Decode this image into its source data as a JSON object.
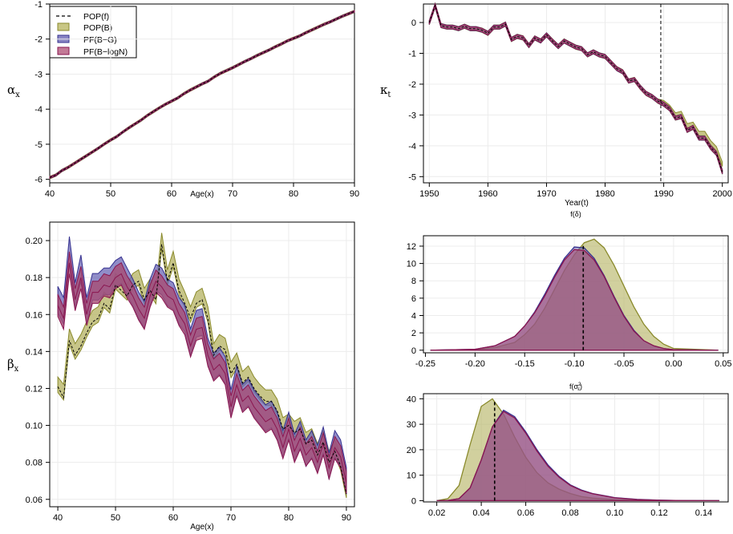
{
  "figure": {
    "legend": {
      "entries": [
        {
          "label": "POP(f)",
          "style": "dashed-line",
          "color": "#000000"
        },
        {
          "label": "POP(B)",
          "style": "fill",
          "fill": "#c8c684",
          "stroke": "#8a8a2c"
        },
        {
          "label": "PF(B−G)",
          "style": "fill",
          "fill": "#8a86c4",
          "stroke": "#35318f"
        },
        {
          "label": "PF(B−logN)",
          "style": "fill",
          "fill": "#c27a96",
          "stroke": "#8a1650"
        }
      ]
    },
    "colors": {
      "pop_f": "#000000",
      "pop_b": "#b9b76a",
      "pop_b_line": "#8a8a2c",
      "pf_bg": "#6b67b5",
      "pf_bg_line": "#35318f",
      "pf_blogn": "#a64d74",
      "pf_blogn_line": "#8a1650"
    }
  },
  "chart_data": [
    {
      "id": "alpha",
      "type": "line",
      "ylabel_main": "α",
      "ylabel_sub": "x",
      "xlabel": "Age(x)",
      "xlim": [
        40,
        90
      ],
      "ylim": [
        -6.1,
        -1
      ],
      "xticks": [
        40,
        50,
        60,
        70,
        80,
        90
      ],
      "yticks": [
        -6,
        -5,
        -4,
        -3,
        -2,
        -1
      ],
      "grid": true,
      "legend_position": "top-left",
      "x": [
        40,
        41,
        42,
        43,
        44,
        45,
        46,
        47,
        48,
        49,
        50,
        51,
        52,
        53,
        54,
        55,
        56,
        57,
        58,
        59,
        60,
        61,
        62,
        63,
        64,
        65,
        66,
        67,
        68,
        69,
        70,
        71,
        72,
        73,
        74,
        75,
        76,
        77,
        78,
        79,
        80,
        81,
        82,
        83,
        84,
        85,
        86,
        87,
        88,
        89,
        90
      ],
      "values": [
        -5.95,
        -5.88,
        -5.75,
        -5.66,
        -5.55,
        -5.44,
        -5.33,
        -5.22,
        -5.11,
        -4.99,
        -4.88,
        -4.78,
        -4.65,
        -4.53,
        -4.42,
        -4.31,
        -4.18,
        -4.07,
        -3.96,
        -3.86,
        -3.77,
        -3.68,
        -3.56,
        -3.46,
        -3.37,
        -3.28,
        -3.2,
        -3.08,
        -2.98,
        -2.9,
        -2.82,
        -2.73,
        -2.64,
        -2.56,
        -2.47,
        -2.39,
        -2.31,
        -2.22,
        -2.14,
        -2.05,
        -1.98,
        -1.91,
        -1.82,
        -1.74,
        -1.66,
        -1.58,
        -1.51,
        -1.43,
        -1.35,
        -1.28,
        -1.21
      ],
      "band_width": 0.035
    },
    {
      "id": "kappa",
      "type": "line",
      "ylabel_main": "κ",
      "ylabel_sub": "t",
      "xlabel": "Year(t)",
      "xlim": [
        1949,
        2001
      ],
      "ylim": [
        -5.2,
        0.6
      ],
      "xticks": [
        1950,
        1960,
        1970,
        1980,
        1990,
        2000
      ],
      "yticks": [
        0,
        -1,
        -2,
        -3,
        -4,
        -5
      ],
      "grid": true,
      "vline": 1989.5,
      "x": [
        1950,
        1951,
        1952,
        1953,
        1954,
        1955,
        1956,
        1957,
        1958,
        1959,
        1960,
        1961,
        1962,
        1963,
        1964,
        1965,
        1966,
        1967,
        1968,
        1969,
        1970,
        1971,
        1972,
        1973,
        1974,
        1975,
        1976,
        1977,
        1978,
        1979,
        1980,
        1981,
        1982,
        1983,
        1984,
        1985,
        1986,
        1987,
        1988,
        1989,
        1990,
        1991,
        1992,
        1993,
        1994,
        1995,
        1996,
        1997,
        1998,
        1999,
        2000
      ],
      "values": [
        0.0,
        0.55,
        -0.1,
        -0.15,
        -0.15,
        -0.2,
        -0.12,
        -0.2,
        -0.2,
        -0.25,
        -0.35,
        -0.15,
        -0.15,
        -0.05,
        -0.55,
        -0.45,
        -0.5,
        -0.75,
        -0.5,
        -0.6,
        -0.4,
        -0.6,
        -0.78,
        -0.6,
        -0.7,
        -0.8,
        -0.85,
        -1.05,
        -0.95,
        -1.05,
        -1.1,
        -1.3,
        -1.5,
        -1.6,
        -1.9,
        -1.85,
        -2.1,
        -2.3,
        -2.4,
        -2.55,
        -2.65,
        -2.8,
        -3.1,
        -3.05,
        -3.5,
        -3.4,
        -3.75,
        -3.75,
        -4.05,
        -4.25,
        -4.85
      ],
      "pop_b_forecast": [
        -2.55,
        -2.6,
        -2.75,
        -3.0,
        -2.95,
        -3.35,
        -3.3,
        -3.6,
        -3.6,
        -3.9,
        -4.1,
        -4.6
      ],
      "band_width": 0.07
    },
    {
      "id": "beta",
      "type": "line",
      "ylabel_main": "β",
      "ylabel_sub": "x",
      "xlabel": "Age(x)",
      "xlim": [
        38.6,
        91.4
      ],
      "ylim": [
        0.056,
        0.21
      ],
      "xticks": [
        40,
        50,
        60,
        70,
        80,
        90
      ],
      "yticks": [
        0.06,
        0.08,
        0.1,
        0.12,
        0.14,
        0.16,
        0.18,
        0.2
      ],
      "grid": true,
      "x": [
        40,
        41,
        42,
        43,
        44,
        45,
        46,
        47,
        48,
        49,
        50,
        51,
        52,
        53,
        54,
        55,
        56,
        57,
        58,
        59,
        60,
        61,
        62,
        63,
        64,
        65,
        66,
        67,
        68,
        69,
        70,
        71,
        72,
        73,
        74,
        75,
        76,
        77,
        78,
        79,
        80,
        81,
        82,
        83,
        84,
        85,
        86,
        87,
        88,
        89,
        90
      ],
      "pop_b": [
        0.122,
        0.118,
        0.148,
        0.14,
        0.145,
        0.152,
        0.158,
        0.16,
        0.168,
        0.165,
        0.178,
        0.175,
        0.172,
        0.178,
        0.18,
        0.17,
        0.175,
        0.17,
        0.2,
        0.18,
        0.19,
        0.175,
        0.168,
        0.16,
        0.168,
        0.17,
        0.16,
        0.14,
        0.145,
        0.143,
        0.13,
        0.135,
        0.125,
        0.128,
        0.122,
        0.118,
        0.115,
        0.115,
        0.11,
        0.1,
        0.102,
        0.098,
        0.1,
        0.092,
        0.094,
        0.086,
        0.093,
        0.082,
        0.088,
        0.08,
        0.065
      ],
      "pf_bg": [
        0.168,
        0.162,
        0.195,
        0.17,
        0.185,
        0.162,
        0.175,
        0.175,
        0.178,
        0.178,
        0.182,
        0.184,
        0.178,
        0.172,
        0.165,
        0.16,
        0.172,
        0.18,
        0.178,
        0.172,
        0.17,
        0.162,
        0.158,
        0.145,
        0.155,
        0.156,
        0.14,
        0.132,
        0.135,
        0.13,
        0.112,
        0.125,
        0.115,
        0.118,
        0.112,
        0.108,
        0.104,
        0.106,
        0.1,
        0.09,
        0.1,
        0.088,
        0.095,
        0.085,
        0.09,
        0.082,
        0.092,
        0.078,
        0.09,
        0.085,
        0.07
      ],
      "pf_blogn": [
        0.165,
        0.158,
        0.188,
        0.168,
        0.18,
        0.16,
        0.172,
        0.172,
        0.176,
        0.175,
        0.18,
        0.182,
        0.175,
        0.17,
        0.163,
        0.158,
        0.17,
        0.178,
        0.175,
        0.17,
        0.168,
        0.16,
        0.155,
        0.143,
        0.152,
        0.153,
        0.138,
        0.13,
        0.133,
        0.128,
        0.11,
        0.122,
        0.113,
        0.116,
        0.11,
        0.106,
        0.102,
        0.104,
        0.098,
        0.088,
        0.098,
        0.086,
        0.093,
        0.084,
        0.088,
        0.08,
        0.09,
        0.077,
        0.088,
        0.083,
        0.069
      ],
      "pop_f": [
        0.121,
        0.115,
        0.146,
        0.138,
        0.143,
        0.15,
        0.156,
        0.158,
        0.166,
        0.163,
        0.176,
        0.173,
        0.17,
        0.176,
        0.178,
        0.168,
        0.173,
        0.168,
        0.198,
        0.178,
        0.188,
        0.173,
        0.166,
        0.158,
        0.166,
        0.168,
        0.158,
        0.138,
        0.143,
        0.141,
        0.128,
        0.133,
        0.123,
        0.126,
        0.12,
        0.116,
        0.113,
        0.113,
        0.108,
        0.098,
        0.1,
        0.096,
        0.098,
        0.09,
        0.092,
        0.084,
        0.091,
        0.08,
        0.086,
        0.078,
        0.063
      ],
      "band_width": 0.006
    },
    {
      "id": "delta",
      "type": "area",
      "title": "f(δ)",
      "xlim": [
        -0.252,
        0.055
      ],
      "ylim": [
        -0.3,
        13.2
      ],
      "xticks": [
        -0.25,
        -0.2,
        -0.15,
        -0.1,
        -0.05,
        0.0,
        0.05
      ],
      "yticks": [
        0,
        2,
        4,
        6,
        8,
        10,
        12
      ],
      "grid": true,
      "vline": -0.091,
      "x": [
        -0.245,
        -0.2,
        -0.18,
        -0.16,
        -0.15,
        -0.14,
        -0.13,
        -0.12,
        -0.11,
        -0.1,
        -0.09,
        -0.08,
        -0.07,
        -0.06,
        -0.05,
        -0.04,
        -0.03,
        -0.02,
        -0.01,
        0.0,
        0.045
      ],
      "series": [
        {
          "name": "POP(B)",
          "values": [
            0,
            0.05,
            0.3,
            0.9,
            1.8,
            3.0,
            4.8,
            7.0,
            9.2,
            11.0,
            12.4,
            12.8,
            11.8,
            9.8,
            7.4,
            5.0,
            3.0,
            1.6,
            0.7,
            0.2,
            0
          ]
        },
        {
          "name": "PF(B−G)",
          "values": [
            0,
            0.1,
            0.5,
            1.6,
            2.8,
            4.4,
            6.4,
            8.6,
            10.6,
            11.9,
            11.8,
            10.6,
            8.6,
            6.2,
            4.0,
            2.3,
            1.1,
            0.5,
            0.2,
            0.05,
            0
          ]
        },
        {
          "name": "PF(B−logN)",
          "values": [
            0,
            0.1,
            0.5,
            1.6,
            2.8,
            4.3,
            6.2,
            8.4,
            10.4,
            11.6,
            11.5,
            10.4,
            8.5,
            6.1,
            3.9,
            2.2,
            1.1,
            0.5,
            0.2,
            0.05,
            0
          ]
        }
      ]
    },
    {
      "id": "sigma",
      "type": "area",
      "title_main": "f(σ",
      "title_sup": "2",
      "title_sub": "ε",
      "title_close": ")",
      "xlim": [
        0.014,
        0.151
      ],
      "ylim": [
        -0.5,
        42
      ],
      "xticks": [
        0.02,
        0.04,
        0.06,
        0.08,
        0.1,
        0.12,
        0.14
      ],
      "yticks": [
        0,
        10,
        20,
        30,
        40
      ],
      "grid": true,
      "vline": 0.046,
      "x": [
        0.02,
        0.025,
        0.03,
        0.035,
        0.04,
        0.045,
        0.05,
        0.055,
        0.06,
        0.065,
        0.07,
        0.075,
        0.08,
        0.085,
        0.09,
        0.1,
        0.11,
        0.12,
        0.13,
        0.147
      ],
      "series": [
        {
          "name": "POP(B)",
          "values": [
            0,
            0.8,
            6,
            22,
            37,
            40,
            34,
            25,
            17,
            11,
            7,
            4.5,
            2.8,
            1.6,
            1.0,
            0.4,
            0.15,
            0.05,
            0,
            0
          ]
        },
        {
          "name": "PF(B−G)",
          "values": [
            0,
            0.1,
            0.8,
            5,
            16,
            29,
            35.5,
            33,
            27,
            20,
            14,
            9.5,
            6.2,
            4.2,
            2.8,
            1.2,
            0.5,
            0.2,
            0.05,
            0
          ]
        },
        {
          "name": "PF(B−logN)",
          "values": [
            0,
            0.1,
            0.8,
            5,
            16,
            29,
            35,
            32.5,
            26.5,
            19.5,
            13.5,
            9.2,
            6.0,
            4.0,
            2.7,
            1.1,
            0.45,
            0.15,
            0.05,
            0
          ]
        }
      ]
    }
  ]
}
